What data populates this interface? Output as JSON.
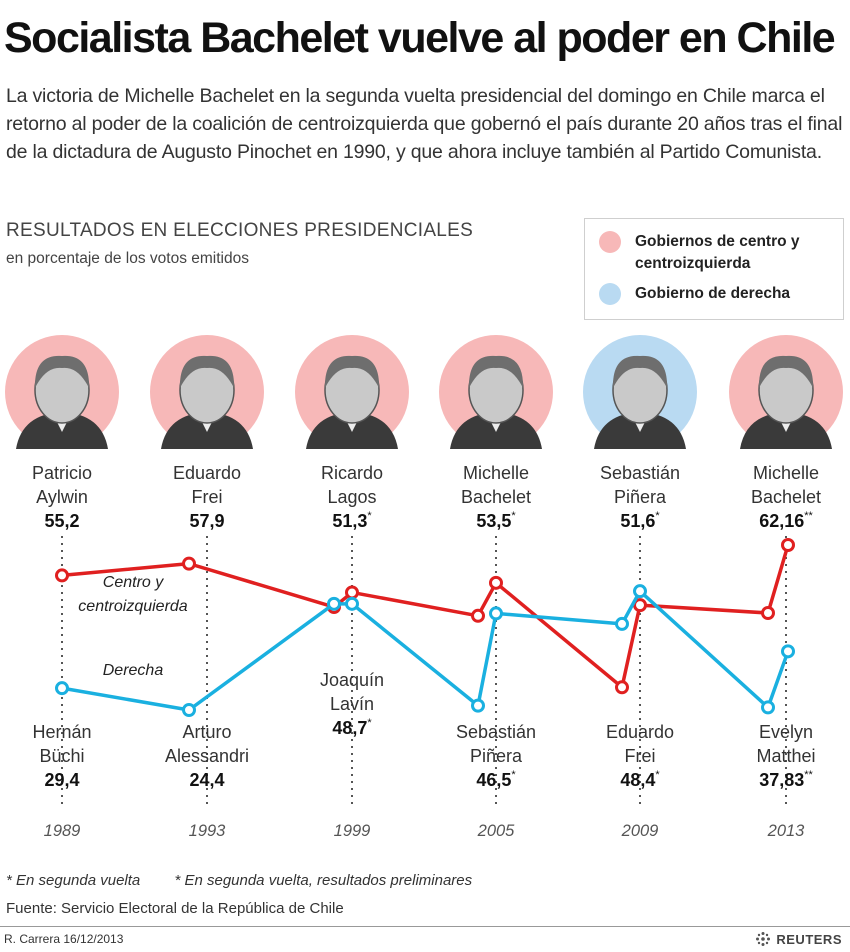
{
  "header": {
    "title": "Socialista Bachelet vuelve al poder en Chile",
    "intro": "La victoria de Michelle Bachelet en la segunda vuelta presidencial del domingo en Chile marca el retorno al poder de la coalición de centroizquierda que gobernó el país durante 20 años tras el final de la dictadura de Augusto Pinochet en 1990, y que ahora incluye también al Partido Comunista."
  },
  "chart_data": {
    "type": "line",
    "title": "RESULTADOS EN ELECCIONES PRESIDENCIALES",
    "subtitle": "en porcentaje de los votos emitidos",
    "years": [
      "1989",
      "1993",
      "1999",
      "2005",
      "2009",
      "2013"
    ],
    "legend": [
      {
        "label": "Gobiernos de centro y centroizquierda",
        "color": "#f7b8b8"
      },
      {
        "label": "Gobierno de derecha",
        "color": "#b9daf2"
      }
    ],
    "series": [
      {
        "name": "Centro y centroizquierda",
        "color": "#e02020",
        "points": [
          [
            "1989",
            55.2
          ],
          [
            "1993",
            57.9
          ],
          [
            "1999",
            47.96
          ],
          [
            "1999",
            51.3
          ],
          [
            "2005",
            45.96
          ],
          [
            "2005",
            53.5
          ],
          [
            "2009",
            29.6
          ],
          [
            "2009",
            48.4
          ],
          [
            "2013",
            46.6
          ],
          [
            "2013",
            62.16
          ]
        ]
      },
      {
        "name": "Derecha",
        "color": "#1ab0e0",
        "points": [
          [
            "1989",
            29.4
          ],
          [
            "1993",
            24.4
          ],
          [
            "1999",
            48.7
          ],
          [
            "1999",
            48.7
          ],
          [
            "2005",
            25.4
          ],
          [
            "2005",
            46.5
          ],
          [
            "2009",
            44.1
          ],
          [
            "2009",
            51.6
          ],
          [
            "2013",
            25.0
          ],
          [
            "2013",
            37.83
          ]
        ]
      }
    ],
    "winners": [
      {
        "name_lines": [
          "Patricio",
          "Aylwin"
        ],
        "pct": "55,2",
        "mark": "",
        "gov": "centro"
      },
      {
        "name_lines": [
          "Eduardo",
          "Frei"
        ],
        "pct": "57,9",
        "mark": "",
        "gov": "centro"
      },
      {
        "name_lines": [
          "Ricardo",
          "Lagos"
        ],
        "pct": "51,3",
        "mark": "*",
        "gov": "centro"
      },
      {
        "name_lines": [
          "Michelle",
          "Bachelet"
        ],
        "pct": "53,5",
        "mark": "*",
        "gov": "centro"
      },
      {
        "name_lines": [
          "Sebastián",
          "Piñera"
        ],
        "pct": "51,6",
        "mark": "*",
        "gov": "derecha"
      },
      {
        "name_lines": [
          "Michelle",
          "Bachelet"
        ],
        "pct": "62,16",
        "mark": "**",
        "gov": "centro"
      }
    ],
    "runners_up": [
      {
        "name_lines": [
          "Hernán",
          "Büchi"
        ],
        "pct": "29,4",
        "mark": ""
      },
      {
        "name_lines": [
          "Arturo",
          "Alessandri"
        ],
        "pct": "24,4",
        "mark": ""
      },
      {
        "name_lines": [
          "Joaquín",
          "Lavín"
        ],
        "pct": "48,7",
        "mark": "*"
      },
      {
        "name_lines": [
          "Sebastián",
          "Piñera"
        ],
        "pct": "46,5",
        "mark": "*"
      },
      {
        "name_lines": [
          "Eduardo",
          "Frei"
        ],
        "pct": "48,4",
        "mark": "*"
      },
      {
        "name_lines": [
          "Evelyn",
          "Matthei"
        ],
        "pct": "37,83",
        "mark": "**"
      }
    ],
    "series_labels": [
      {
        "series": "Centro y centroizquierda",
        "lines": [
          "Centro y",
          "centroizquierda"
        ]
      },
      {
        "series": "Derecha",
        "lines": [
          "Derecha"
        ]
      }
    ]
  },
  "footer": {
    "footnote_1": "* En segunda vuelta",
    "footnote_2": "* En segunda vuelta, resultados preliminares",
    "source": "Fuente: Servicio Electoral de la República de Chile",
    "credit": "R. Carrera 16/12/2013",
    "brand": "REUTERS"
  },
  "icons": {
    "portraits": "person-portrait-icon",
    "brand": "reuters-logo-icon"
  }
}
